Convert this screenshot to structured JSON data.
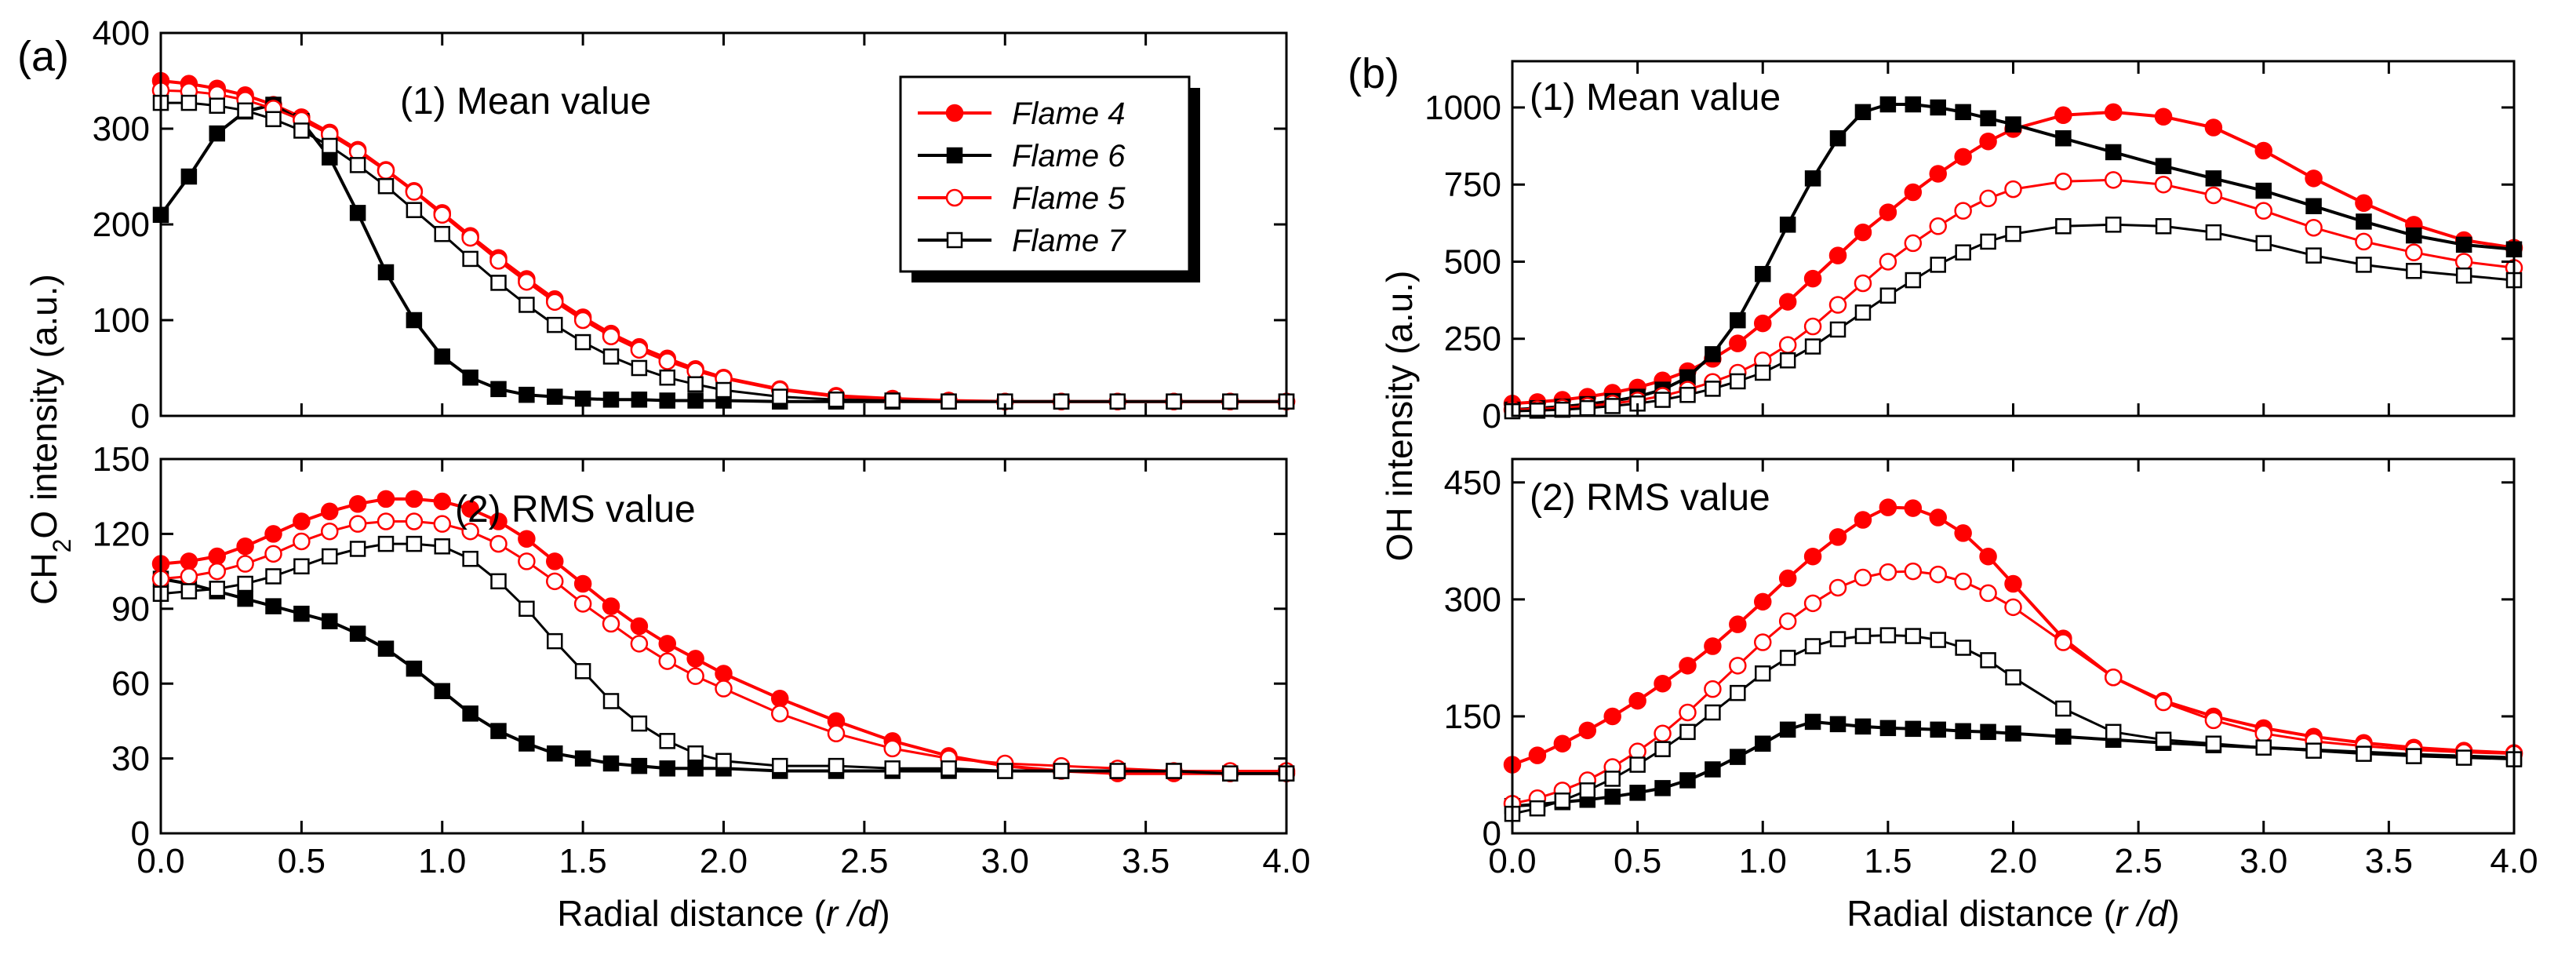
{
  "chart_data": [
    {
      "type": "line",
      "panel_label": "(a)",
      "subplot": "top",
      "title": "(1) Mean value",
      "xlabel": "",
      "ylabel": "CH2O intensity (a.u.)",
      "xlim": [
        0,
        4
      ],
      "ylim": [
        0,
        400
      ],
      "yticks": [
        0,
        100,
        200,
        300,
        400
      ],
      "x": [
        0,
        0.1,
        0.2,
        0.3,
        0.4,
        0.5,
        0.6,
        0.7,
        0.8,
        0.9,
        1.0,
        1.1,
        1.2,
        1.3,
        1.4,
        1.5,
        1.6,
        1.7,
        1.8,
        1.9,
        2.0,
        2.2,
        2.4,
        2.6,
        2.8,
        3.0,
        3.2,
        3.4,
        3.6,
        3.8,
        4.0
      ],
      "series": [
        {
          "name": "Flame 4",
          "values": [
            350,
            347,
            342,
            335,
            325,
            312,
            296,
            278,
            257,
            235,
            212,
            188,
            165,
            143,
            122,
            103,
            86,
            72,
            60,
            49,
            40,
            28,
            21,
            18,
            16,
            15,
            15,
            15,
            15,
            15,
            15
          ]
        },
        {
          "name": "Flame 6",
          "values": [
            210,
            250,
            295,
            318,
            325,
            308,
            270,
            212,
            150,
            100,
            62,
            40,
            28,
            22,
            20,
            18,
            17,
            17,
            16,
            16,
            16,
            15,
            15,
            15,
            15,
            15,
            15,
            15,
            15,
            15,
            15
          ]
        },
        {
          "name": "Flame 5",
          "values": [
            340,
            339,
            336,
            330,
            321,
            309,
            294,
            276,
            256,
            234,
            210,
            186,
            162,
            140,
            119,
            100,
            83,
            69,
            57,
            47,
            39,
            27,
            20,
            17,
            16,
            15,
            15,
            15,
            15,
            15,
            15
          ]
        },
        {
          "name": "Flame 7",
          "values": [
            327,
            327,
            324,
            319,
            310,
            298,
            282,
            262,
            240,
            215,
            190,
            164,
            139,
            116,
            95,
            77,
            62,
            50,
            40,
            33,
            27,
            20,
            17,
            16,
            15,
            15,
            15,
            15,
            15,
            15,
            15
          ]
        }
      ]
    },
    {
      "type": "line",
      "panel_label": "",
      "subplot": "bottom",
      "title": "(2) RMS value",
      "xlabel": "Radial distance (r /d)",
      "ylabel": "CH2O intensity (a.u.)",
      "xlim": [
        0,
        4
      ],
      "ylim": [
        0,
        150
      ],
      "yticks": [
        0,
        30,
        60,
        90,
        120,
        150
      ],
      "xticks": [
        0.0,
        0.5,
        1.0,
        1.5,
        2.0,
        2.5,
        3.0,
        3.5,
        4.0
      ],
      "x": [
        0,
        0.1,
        0.2,
        0.3,
        0.4,
        0.5,
        0.6,
        0.7,
        0.8,
        0.9,
        1.0,
        1.1,
        1.2,
        1.3,
        1.4,
        1.5,
        1.6,
        1.7,
        1.8,
        1.9,
        2.0,
        2.2,
        2.4,
        2.6,
        2.8,
        3.0,
        3.2,
        3.4,
        3.6,
        3.8,
        4.0
      ],
      "series": [
        {
          "name": "Flame 4",
          "values": [
            108,
            109,
            111,
            115,
            120,
            125,
            129,
            132,
            134,
            134,
            133,
            130,
            125,
            118,
            109,
            100,
            91,
            83,
            76,
            70,
            64,
            54,
            45,
            37,
            31,
            27,
            25,
            24,
            24,
            24,
            24
          ]
        },
        {
          "name": "Flame 6",
          "values": [
            102,
            100,
            97,
            94,
            91,
            88,
            85,
            80,
            74,
            66,
            57,
            48,
            41,
            36,
            32,
            30,
            28,
            27,
            26,
            26,
            26,
            25,
            25,
            25,
            25,
            25,
            25,
            25,
            25,
            24,
            24
          ]
        },
        {
          "name": "Flame 5",
          "values": [
            102,
            103,
            105,
            108,
            112,
            117,
            121,
            124,
            125,
            125,
            124,
            121,
            116,
            109,
            101,
            92,
            84,
            76,
            69,
            63,
            58,
            48,
            40,
            34,
            30,
            28,
            27,
            26,
            25,
            25,
            25
          ]
        },
        {
          "name": "Flame 7",
          "values": [
            96,
            97,
            98,
            100,
            103,
            107,
            111,
            114,
            116,
            116,
            115,
            110,
            101,
            90,
            77,
            65,
            53,
            44,
            37,
            32,
            29,
            27,
            27,
            26,
            26,
            25,
            25,
            25,
            25,
            24,
            24
          ]
        }
      ]
    },
    {
      "type": "line",
      "panel_label": "(b)",
      "subplot": "top",
      "title": "(1) Mean value",
      "xlabel": "",
      "ylabel": "OH intensity (a.u.)",
      "xlim": [
        0,
        4
      ],
      "ylim": [
        0,
        1150
      ],
      "yticks": [
        0,
        250,
        500,
        750,
        1000
      ],
      "x": [
        0,
        0.1,
        0.2,
        0.3,
        0.4,
        0.5,
        0.6,
        0.7,
        0.8,
        0.9,
        1.0,
        1.1,
        1.2,
        1.3,
        1.4,
        1.5,
        1.6,
        1.7,
        1.8,
        1.9,
        2.0,
        2.2,
        2.4,
        2.6,
        2.8,
        3.0,
        3.2,
        3.4,
        3.6,
        3.8,
        4.0
      ],
      "series": [
        {
          "name": "Flame 4",
          "values": [
            40,
            45,
            52,
            62,
            75,
            92,
            115,
            145,
            185,
            235,
            300,
            370,
            445,
            520,
            595,
            660,
            725,
            785,
            840,
            890,
            930,
            975,
            985,
            970,
            935,
            860,
            770,
            690,
            620,
            570,
            545
          ]
        },
        {
          "name": "Flame 6",
          "values": [
            20,
            25,
            30,
            38,
            48,
            62,
            85,
            125,
            200,
            310,
            460,
            620,
            770,
            900,
            985,
            1010,
            1010,
            1000,
            985,
            965,
            945,
            900,
            855,
            810,
            770,
            730,
            680,
            630,
            585,
            555,
            540
          ]
        },
        {
          "name": "Flame 5",
          "values": [
            20,
            22,
            26,
            32,
            40,
            50,
            65,
            85,
            110,
            140,
            180,
            230,
            290,
            360,
            430,
            500,
            560,
            615,
            665,
            705,
            735,
            760,
            765,
            750,
            715,
            665,
            610,
            565,
            530,
            500,
            480
          ]
        },
        {
          "name": "Flame 7",
          "values": [
            15,
            17,
            20,
            25,
            32,
            40,
            52,
            68,
            88,
            112,
            140,
            180,
            225,
            280,
            335,
            390,
            440,
            490,
            530,
            565,
            590,
            615,
            620,
            615,
            595,
            560,
            520,
            490,
            470,
            455,
            440
          ]
        }
      ]
    },
    {
      "type": "line",
      "panel_label": "",
      "subplot": "bottom",
      "title": "(2) RMS value",
      "xlabel": "Radial distance (r /d)",
      "ylabel": "OH intensity (a.u.)",
      "xlim": [
        0,
        4
      ],
      "ylim": [
        0,
        480
      ],
      "yticks": [
        0,
        150,
        300,
        450
      ],
      "xticks": [
        0.0,
        0.5,
        1.0,
        1.5,
        2.0,
        2.5,
        3.0,
        3.5,
        4.0
      ],
      "x": [
        0,
        0.1,
        0.2,
        0.3,
        0.4,
        0.5,
        0.6,
        0.7,
        0.8,
        0.9,
        1.0,
        1.1,
        1.2,
        1.3,
        1.4,
        1.5,
        1.6,
        1.7,
        1.8,
        1.9,
        2.0,
        2.2,
        2.4,
        2.6,
        2.8,
        3.0,
        3.2,
        3.4,
        3.6,
        3.8,
        4.0
      ],
      "series": [
        {
          "name": "Flame 4",
          "values": [
            88,
            100,
            115,
            132,
            150,
            170,
            192,
            215,
            240,
            268,
            297,
            327,
            355,
            380,
            402,
            418,
            417,
            405,
            385,
            355,
            320,
            250,
            200,
            170,
            150,
            135,
            124,
            116,
            110,
            106,
            103
          ]
        },
        {
          "name": "Flame 6",
          "values": [
            35,
            37,
            40,
            43,
            47,
            52,
            58,
            68,
            82,
            98,
            115,
            133,
            143,
            140,
            137,
            135,
            134,
            133,
            131,
            130,
            128,
            124,
            120,
            116,
            113,
            110,
            107,
            104,
            101,
            99,
            97
          ]
        },
        {
          "name": "Flame 5",
          "values": [
            38,
            45,
            55,
            68,
            85,
            105,
            128,
            155,
            185,
            215,
            245,
            272,
            295,
            315,
            328,
            335,
            336,
            332,
            323,
            308,
            290,
            245,
            200,
            168,
            145,
            128,
            118,
            112,
            107,
            104,
            102
          ]
        },
        {
          "name": "Flame 7",
          "values": [
            25,
            32,
            42,
            55,
            70,
            88,
            108,
            130,
            155,
            180,
            205,
            225,
            240,
            249,
            253,
            254,
            253,
            248,
            238,
            222,
            200,
            160,
            130,
            120,
            115,
            110,
            106,
            102,
            99,
            97,
            95
          ]
        }
      ]
    }
  ],
  "legend": {
    "entries": [
      {
        "name": "Flame 4",
        "color": "#ff0000",
        "marker": "circle",
        "filled": true
      },
      {
        "name": "Flame 6",
        "color": "#000000",
        "marker": "square",
        "filled": true
      },
      {
        "name": "Flame 5",
        "color": "#ff0000",
        "marker": "circle",
        "filled": false
      },
      {
        "name": "Flame 7",
        "color": "#000000",
        "marker": "square",
        "filled": false
      }
    ],
    "placement": "top-right of panel (a) mean subplot"
  }
}
